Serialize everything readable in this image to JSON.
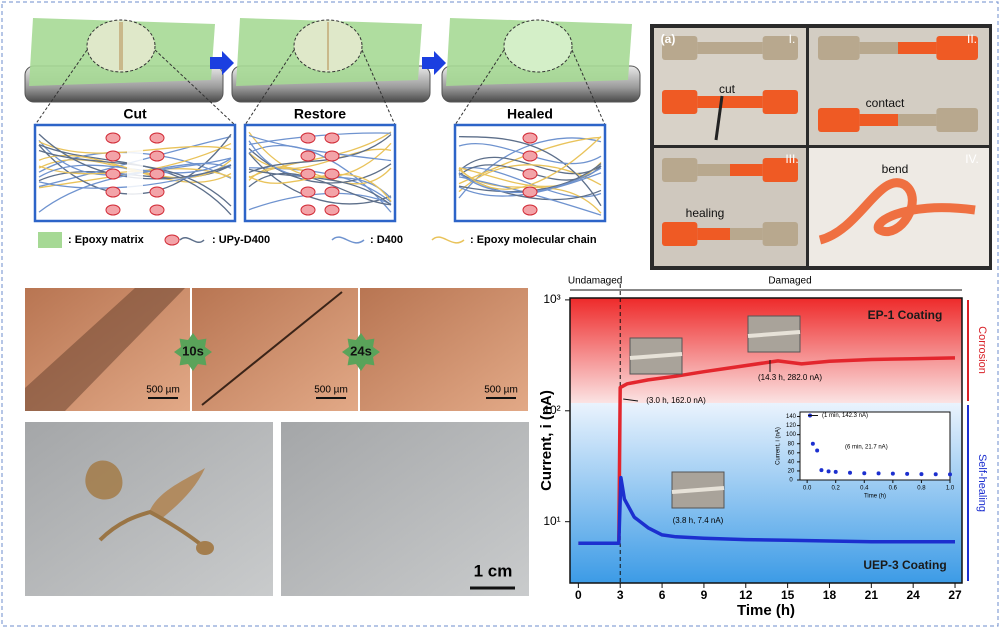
{
  "schematic": {
    "stages": [
      "Cut",
      "Restore",
      "Healed"
    ],
    "legend": [
      ": Epoxy matrix",
      ": UPy-D400",
      ": D400",
      ": Epoxy molecular chain"
    ]
  },
  "photos": {
    "panel_label": "(a)",
    "steps": [
      {
        "numeral": "I.",
        "caption": "cut"
      },
      {
        "numeral": "II.",
        "caption": "contact"
      },
      {
        "numeral": "III.",
        "caption": "healing"
      },
      {
        "numeral": "IV.",
        "caption": "bend"
      }
    ]
  },
  "micrographs": {
    "times": [
      "10s",
      "24s"
    ],
    "scale_bars": [
      "500 µm",
      "500 µm",
      "500 µm"
    ]
  },
  "macro": {
    "scale_bar": "1 cm"
  },
  "chart_data": {
    "type": "line",
    "xlabel": "Time (h)",
    "ylabel": "Current, i (nA)",
    "xlim": [
      -0.6,
      27.5
    ],
    "ylim": [
      2.8,
      1040
    ],
    "log_scale": true,
    "xticks": [
      0,
      3,
      6,
      9,
      12,
      15,
      18,
      21,
      24,
      27
    ],
    "yticks": [
      {
        "value": 10,
        "label": "10¹"
      },
      {
        "value": 100,
        "label": "10²"
      },
      {
        "value": 1000,
        "label": "10³"
      }
    ],
    "phases": [
      "Undamaged",
      "Damaged"
    ],
    "side_labels": [
      "Corrosion",
      "Self-healing"
    ],
    "series": [
      {
        "name": "EP-1 Coating",
        "color": "#e3262d",
        "x": [
          0,
          1,
          2,
          2.9,
          3,
          3.5,
          5,
          7,
          9,
          11,
          14.3,
          16,
          18,
          21,
          24,
          27
        ],
        "values": [
          6.4,
          6.4,
          6.4,
          6.4,
          162,
          175,
          190,
          205,
          225,
          245,
          282,
          265,
          280,
          290,
          295,
          300
        ]
      },
      {
        "name": "UEP-3 Coating",
        "color": "#1c2fcf",
        "x": [
          0,
          1,
          2,
          2.9,
          3.05,
          3.3,
          4,
          5,
          6,
          7,
          9,
          12,
          15,
          18,
          21,
          24,
          27
        ],
        "values": [
          6.4,
          6.4,
          6.4,
          6.4,
          25,
          16,
          11,
          8.8,
          7.6,
          7.3,
          7.1,
          6.9,
          6.8,
          6.7,
          6.6,
          6.6,
          6.6
        ]
      }
    ],
    "annotations": [
      "(3.0 h, 162.0 nA)",
      "(14.3 h, 282.0 nA)",
      "(3.8 h, 7.4 nA)"
    ],
    "inset": {
      "xlabel": "Time (h)",
      "ylabel": "Current, i (nA)",
      "xlim": [
        -0.05,
        1.0
      ],
      "ylim": [
        0,
        150
      ],
      "xticks": [
        {
          "value": 0,
          "label": "0.0"
        },
        0.2,
        0.4,
        0.6,
        0.8,
        {
          "value": 1,
          "label": "1.0"
        }
      ],
      "yticks": [
        0,
        20,
        40,
        60,
        80,
        100,
        120,
        140
      ],
      "color": "#1c2fcf",
      "x": [
        0.02,
        0.04,
        0.07,
        0.1,
        0.15,
        0.2,
        0.3,
        0.4,
        0.5,
        0.6,
        0.7,
        0.8,
        0.9,
        1.0
      ],
      "values": [
        142.3,
        80,
        65,
        21.7,
        19,
        18,
        16,
        15,
        14.5,
        14,
        13.5,
        13,
        12.8,
        12.5
      ],
      "annotations": [
        "(1 min, 142.3 nA)",
        "(6 min, 21.7 nA)"
      ]
    }
  }
}
